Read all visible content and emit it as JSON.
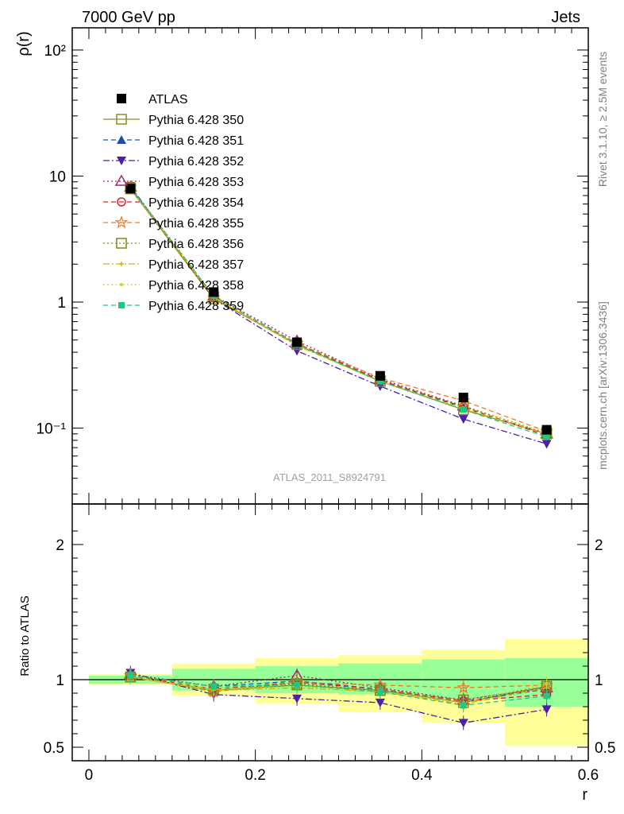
{
  "header": {
    "left_label": "7000 GeV pp",
    "right_label": "Jets"
  },
  "side_text": {
    "rivet": "Rivet 3.1.10, ≥ 2.5M events",
    "mcplots": "mcplots.cern.ch [arXiv:1306.3436]"
  },
  "analysis_label": "ATLAS_2011_S8924791",
  "chart_data": [
    {
      "type": "line",
      "panel": "main",
      "ylabel": "ρ(r)",
      "xlabel": "",
      "log_y": true,
      "ylim": [
        0.025,
        150
      ],
      "xlim": [
        -0.02,
        0.6
      ],
      "y_tick_labels": [
        "10⁻¹",
        "1",
        "10",
        "10²"
      ],
      "x": [
        0.05,
        0.15,
        0.25,
        0.35,
        0.45,
        0.55
      ],
      "data": {
        "name": "ATLAS",
        "values": [
          7.95,
          1.2,
          0.48,
          0.26,
          0.175,
          0.097
        ],
        "color": "#000000"
      },
      "series": [
        {
          "name": "Pythia 6.428 350",
          "color": "#8c8c2a",
          "marker": "open-square",
          "dash": "solid",
          "values": [
            7.9,
            1.06,
            0.46,
            0.235,
            0.14,
            0.09
          ]
        },
        {
          "name": "Pythia 6.428 351",
          "color": "#1f4fae",
          "marker": "triangle-up",
          "dash": "dashed",
          "values": [
            8.0,
            1.1,
            0.47,
            0.24,
            0.145,
            0.09
          ]
        },
        {
          "name": "Pythia 6.428 352",
          "color": "#4b1fa8",
          "marker": "triangle-down",
          "dash": "dashdot",
          "values": [
            8.3,
            1.06,
            0.41,
            0.215,
            0.118,
            0.075
          ]
        },
        {
          "name": "Pythia 6.428 353",
          "color": "#a0286e",
          "marker": "open-triangle",
          "dash": "dotted",
          "values": [
            8.2,
            1.12,
            0.49,
            0.245,
            0.15,
            0.09
          ]
        },
        {
          "name": "Pythia 6.428 354",
          "color": "#e0202a",
          "marker": "open-circle",
          "dash": "dashed",
          "values": [
            8.1,
            1.1,
            0.47,
            0.24,
            0.148,
            0.087
          ]
        },
        {
          "name": "Pythia 6.428 355",
          "color": "#f07820",
          "marker": "open-star",
          "dash": "dashed",
          "values": [
            8.1,
            1.08,
            0.47,
            0.25,
            0.165,
            0.094
          ]
        },
        {
          "name": "Pythia 6.428 356",
          "color": "#7a8c10",
          "marker": "open-square",
          "dash": "dotted",
          "values": [
            8.0,
            1.1,
            0.46,
            0.235,
            0.148,
            0.092
          ]
        },
        {
          "name": "Pythia 6.428 357",
          "color": "#d4b800",
          "marker": "small-cross",
          "dash": "dashdot",
          "values": [
            8.05,
            1.09,
            0.45,
            0.235,
            0.142,
            0.09
          ]
        },
        {
          "name": "Pythia 6.428 358",
          "color": "#c8d820",
          "marker": "small-dot",
          "dash": "dotted",
          "values": [
            8.0,
            1.1,
            0.455,
            0.232,
            0.145,
            0.092
          ]
        },
        {
          "name": "Pythia 6.428 359",
          "color": "#20c880",
          "marker": "filled-square",
          "dash": "dashed",
          "values": [
            8.1,
            1.12,
            0.46,
            0.235,
            0.14,
            0.085
          ]
        }
      ]
    },
    {
      "type": "line",
      "panel": "ratio",
      "ylabel": "Ratio to ATLAS",
      "xlabel": "r",
      "ylim": [
        0.4,
        2.3
      ],
      "xlim": [
        -0.02,
        0.6
      ],
      "y_ticks": [
        0.5,
        1,
        2
      ],
      "y_tick_labels": [
        "0.5",
        "1",
        "2"
      ],
      "x_ticks": [
        0,
        0.2,
        0.4,
        0.6
      ],
      "x_tick_labels": [
        "0",
        "0.2",
        "0.4",
        "0.6"
      ],
      "bins": [
        [
          0.0,
          0.1
        ],
        [
          0.1,
          0.2
        ],
        [
          0.2,
          0.3
        ],
        [
          0.3,
          0.4
        ],
        [
          0.4,
          0.5
        ],
        [
          0.5,
          0.6
        ]
      ],
      "band_stat": [
        [
          0.97,
          1.03
        ],
        [
          0.92,
          1.08
        ],
        [
          0.9,
          1.1
        ],
        [
          0.89,
          1.12
        ],
        [
          0.86,
          1.15
        ],
        [
          0.8,
          1.16
        ]
      ],
      "band_total": [
        [
          0.96,
          1.04
        ],
        [
          0.88,
          1.12
        ],
        [
          0.82,
          1.16
        ],
        [
          0.76,
          1.18
        ],
        [
          0.68,
          1.22
        ],
        [
          0.51,
          1.3
        ]
      ],
      "band_colors": {
        "stat": "#99ff99",
        "total": "#ffff99"
      },
      "series_ratios": [
        [
          1.02,
          0.92,
          0.96,
          0.92,
          0.83,
          0.95
        ],
        [
          1.03,
          0.95,
          0.99,
          0.93,
          0.84,
          0.93
        ],
        [
          1.05,
          0.89,
          0.86,
          0.83,
          0.68,
          0.78
        ],
        [
          1.04,
          0.95,
          1.03,
          0.94,
          0.85,
          0.94
        ],
        [
          1.03,
          0.93,
          0.98,
          0.93,
          0.84,
          0.89
        ],
        [
          1.03,
          0.91,
          0.98,
          0.96,
          0.94,
          0.96
        ],
        [
          1.02,
          0.93,
          0.97,
          0.92,
          0.85,
          0.95
        ],
        [
          1.02,
          0.92,
          0.94,
          0.91,
          0.82,
          0.94
        ],
        [
          1.02,
          0.93,
          0.95,
          0.91,
          0.83,
          0.97
        ],
        [
          1.03,
          0.95,
          0.96,
          0.91,
          0.81,
          0.88
        ]
      ]
    }
  ]
}
